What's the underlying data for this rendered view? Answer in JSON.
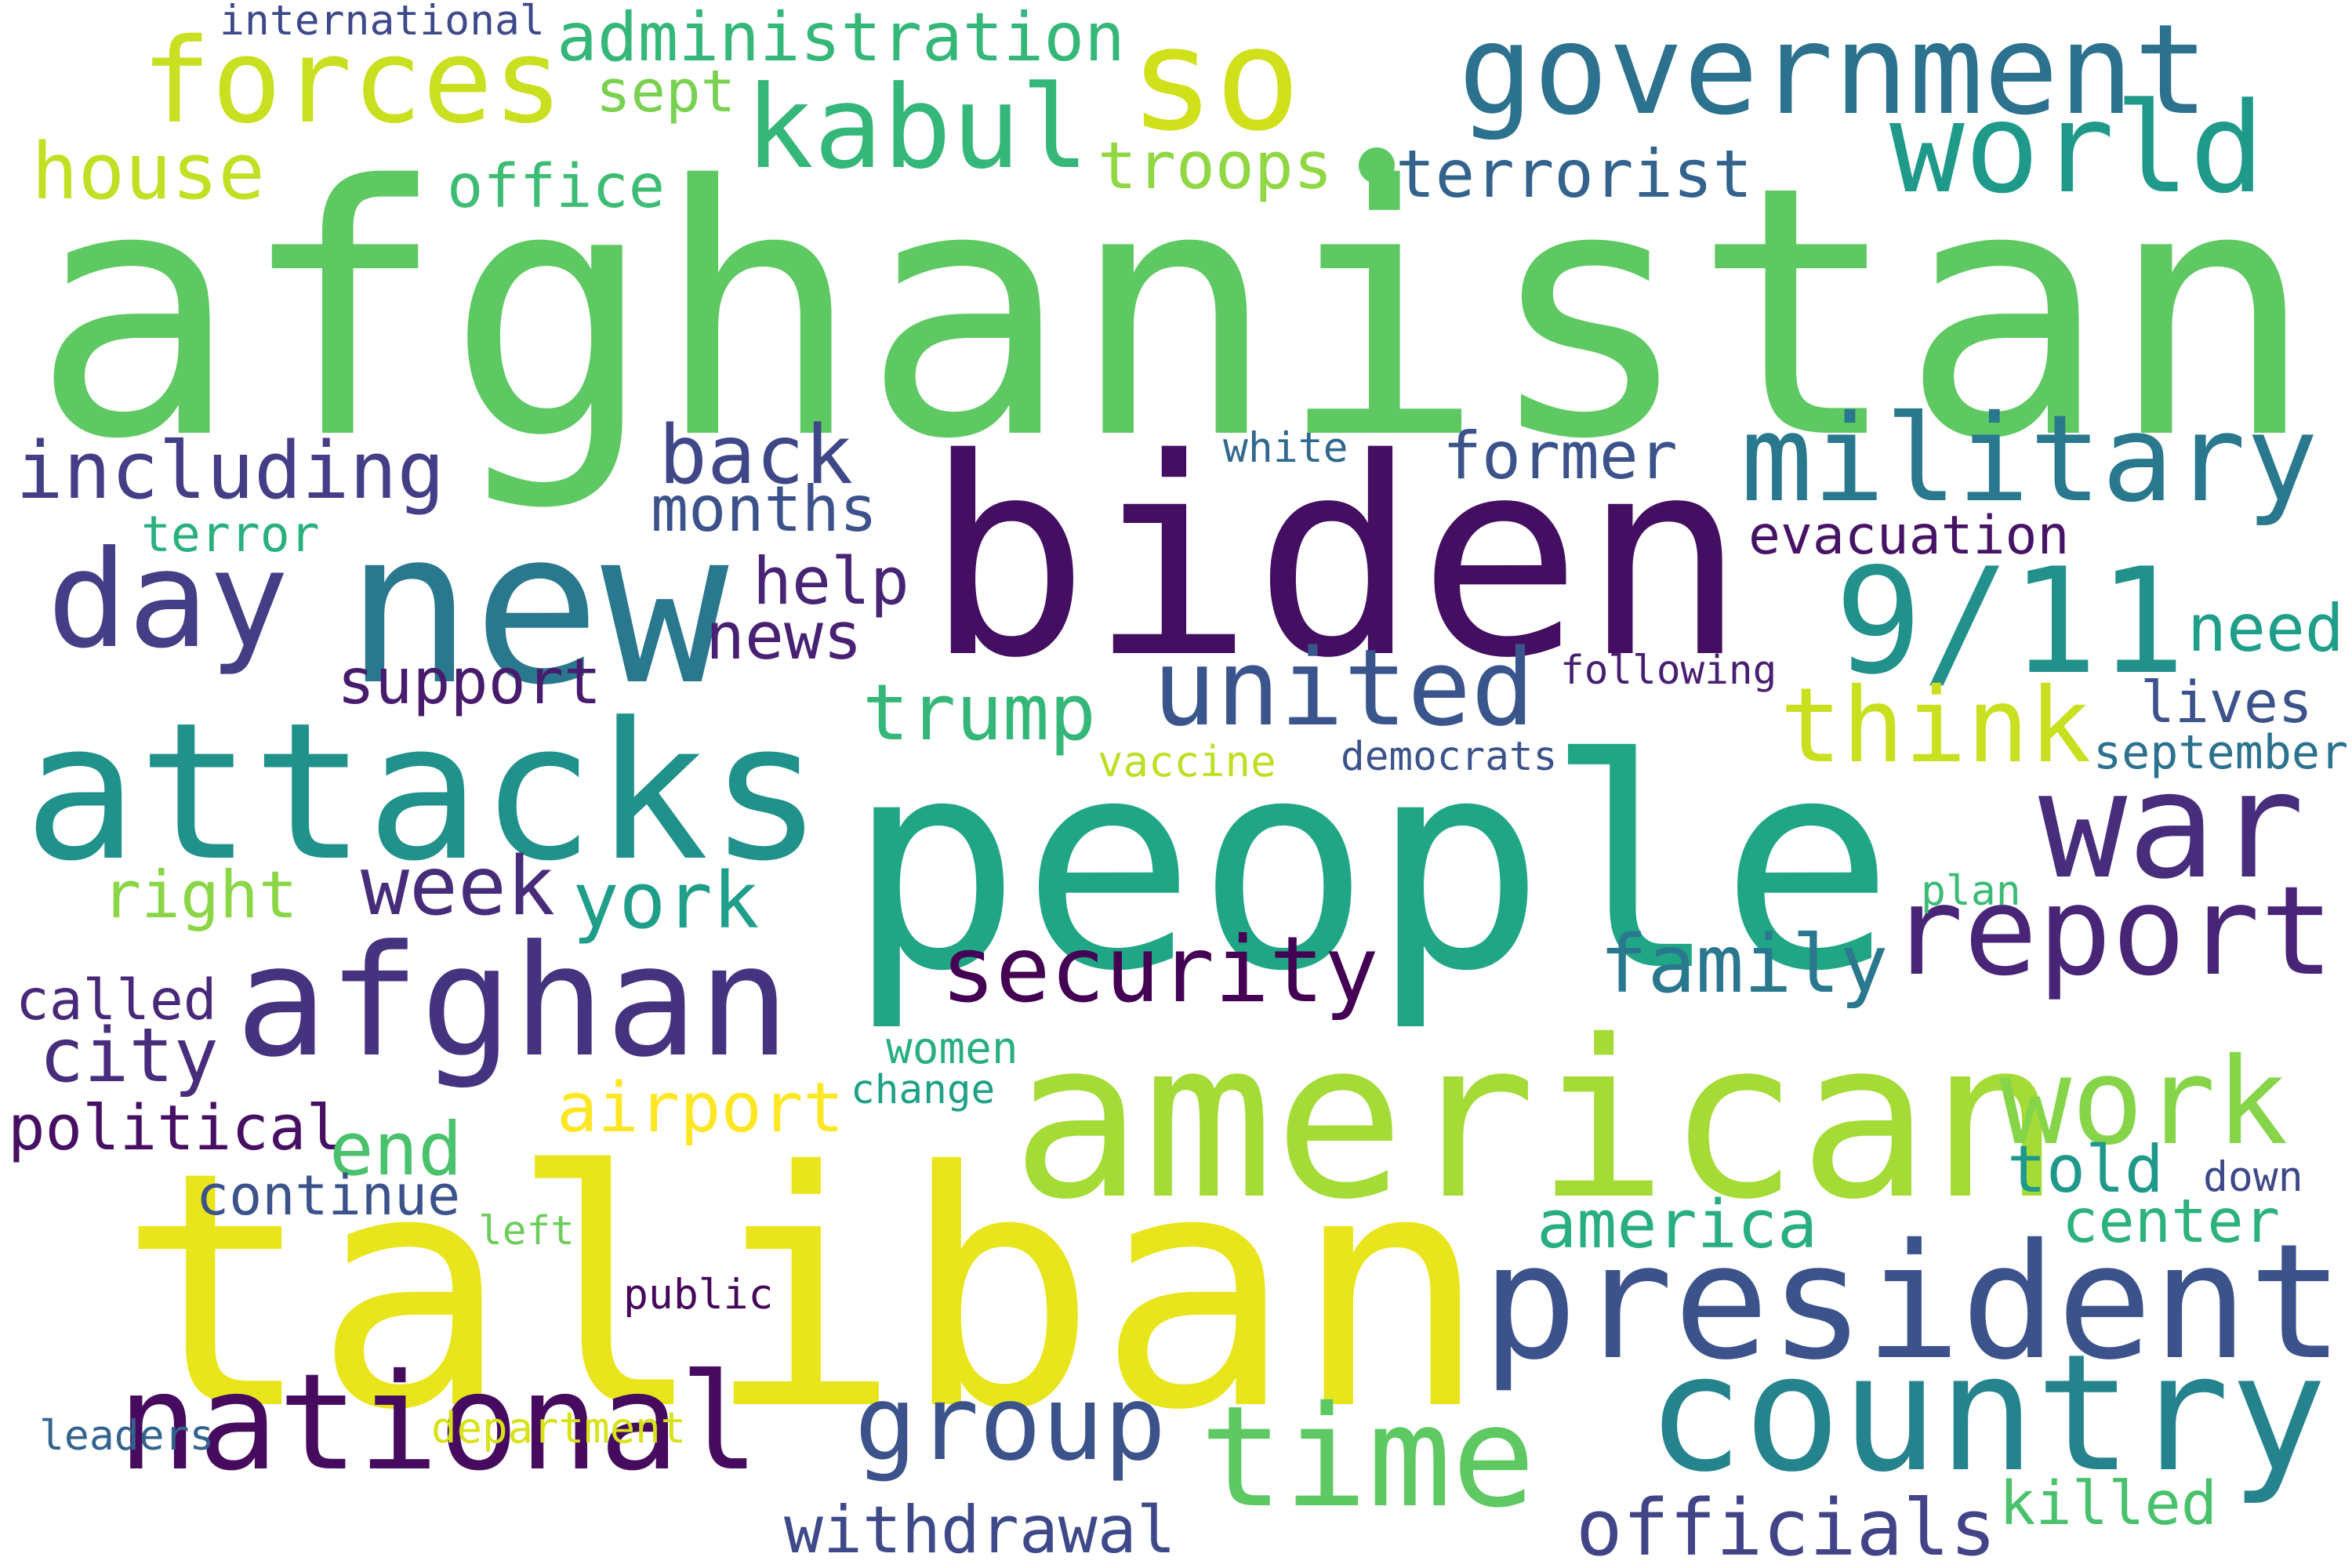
{
  "words": [
    {
      "id": "afghanistan",
      "text": "afghanistan",
      "color": "#5ec962"
    },
    {
      "id": "taliban",
      "text": "taliban",
      "color": "#e9e51c"
    },
    {
      "id": "biden",
      "text": "biden",
      "color": "#440f62"
    },
    {
      "id": "people",
      "text": "people",
      "color": "#21a685"
    },
    {
      "id": "american",
      "text": "american",
      "color": "#a4db36"
    },
    {
      "id": "attacks",
      "text": "attacks",
      "color": "#21918c"
    },
    {
      "id": "new",
      "text": "new",
      "color": "#2a788e"
    },
    {
      "id": "president",
      "text": "president",
      "color": "#3b528b"
    },
    {
      "id": "government",
      "text": "government",
      "color": "#2c718e"
    },
    {
      "id": "afghan",
      "text": "afghan",
      "color": "#46337f"
    },
    {
      "id": "national",
      "text": "national",
      "color": "#460b5e"
    },
    {
      "id": "country",
      "text": "country",
      "color": "#25838e"
    },
    {
      "id": "time",
      "text": "time",
      "color": "#5ec962"
    },
    {
      "id": "911",
      "text": "9/11",
      "color": "#22918c"
    },
    {
      "id": "military",
      "text": "military",
      "color": "#2a788e"
    },
    {
      "id": "war",
      "text": "war",
      "color": "#472d7b"
    },
    {
      "id": "report",
      "text": "report",
      "color": "#482576"
    },
    {
      "id": "united",
      "text": "united",
      "color": "#3a548c"
    },
    {
      "id": "day",
      "text": "day",
      "color": "#433e85"
    },
    {
      "id": "group",
      "text": "group",
      "color": "#3b528b"
    },
    {
      "id": "world",
      "text": "world",
      "color": "#1f9a8a"
    },
    {
      "id": "kabul",
      "text": "kabul",
      "color": "#35b779"
    },
    {
      "id": "forces",
      "text": "forces",
      "color": "#c8e020"
    },
    {
      "id": "so",
      "text": "so",
      "color": "#d0e11c"
    },
    {
      "id": "think",
      "text": "think",
      "color": "#c8e020"
    },
    {
      "id": "work",
      "text": "work",
      "color": "#86d549"
    },
    {
      "id": "security",
      "text": "security",
      "color": "#440154"
    },
    {
      "id": "officials",
      "text": "officials",
      "color": "#414487"
    },
    {
      "id": "including",
      "text": "including",
      "color": "#433e85"
    },
    {
      "id": "trump",
      "text": "trump",
      "color": "#35b779"
    },
    {
      "id": "family",
      "text": "family",
      "color": "#2a788e"
    },
    {
      "id": "back",
      "text": "back",
      "color": "#3f4788"
    },
    {
      "id": "week",
      "text": "week",
      "color": "#472c7a"
    },
    {
      "id": "york",
      "text": "york",
      "color": "#1f9e89"
    },
    {
      "id": "right",
      "text": "right",
      "color": "#8bd646"
    },
    {
      "id": "city",
      "text": "city",
      "color": "#472d7b"
    },
    {
      "id": "withdrawal",
      "text": "withdrawal",
      "color": "#3e4989"
    },
    {
      "id": "killed",
      "text": "killed",
      "color": "#4ac16d"
    },
    {
      "id": "former",
      "text": "former",
      "color": "#3b528b"
    },
    {
      "id": "terrorist",
      "text": "terrorist",
      "color": "#33638d"
    },
    {
      "id": "troops",
      "text": "troops",
      "color": "#90d743"
    },
    {
      "id": "administration",
      "text": "administration",
      "color": "#35b779"
    },
    {
      "id": "house",
      "text": "house",
      "color": "#c2df23"
    },
    {
      "id": "help",
      "text": "help",
      "color": "#482475"
    },
    {
      "id": "america",
      "text": "america",
      "color": "#29af7f"
    },
    {
      "id": "airport",
      "text": "airport",
      "color": "#fde725"
    },
    {
      "id": "political",
      "text": "political",
      "color": "#471063"
    },
    {
      "id": "months",
      "text": "months",
      "color": "#3b528b"
    },
    {
      "id": "news",
      "text": "news",
      "color": "#482173"
    },
    {
      "id": "support",
      "text": "support",
      "color": "#481b6d"
    },
    {
      "id": "end",
      "text": "end",
      "color": "#4ac16d"
    },
    {
      "id": "told",
      "text": "told",
      "color": "#1f988b"
    },
    {
      "id": "center",
      "text": "center",
      "color": "#2db27d"
    },
    {
      "id": "continue",
      "text": "continue",
      "color": "#3b528b"
    },
    {
      "id": "need",
      "text": "need",
      "color": "#1f9e89"
    },
    {
      "id": "lives",
      "text": "lives",
      "color": "#3b528b"
    },
    {
      "id": "office",
      "text": "office",
      "color": "#3dbc74"
    },
    {
      "id": "called",
      "text": "called",
      "color": "#482979"
    },
    {
      "id": "evacuation",
      "text": "evacuation",
      "color": "#471365"
    },
    {
      "id": "sept",
      "text": "sept",
      "color": "#7ad151"
    },
    {
      "id": "terror",
      "text": "terror",
      "color": "#2ab07f"
    },
    {
      "id": "september",
      "text": "september",
      "color": "#2c718e"
    },
    {
      "id": "international",
      "text": "international",
      "color": "#3e4989"
    },
    {
      "id": "following",
      "text": "following",
      "color": "#481f70"
    },
    {
      "id": "vaccine",
      "text": "vaccine",
      "color": "#bddf26"
    },
    {
      "id": "democrats",
      "text": "democrats",
      "color": "#3b528b"
    },
    {
      "id": "white",
      "text": "white",
      "color": "#31688e"
    },
    {
      "id": "department",
      "text": "department",
      "color": "#d8e219"
    },
    {
      "id": "leaders",
      "text": "leaders",
      "color": "#33638d"
    },
    {
      "id": "women",
      "text": "women",
      "color": "#29af7f"
    },
    {
      "id": "change",
      "text": "change",
      "color": "#1fa187"
    },
    {
      "id": "public",
      "text": "public",
      "color": "#450559"
    },
    {
      "id": "left",
      "text": "left",
      "color": "#6ccd5a"
    },
    {
      "id": "down",
      "text": "down",
      "color": "#3e4989"
    },
    {
      "id": "plan",
      "text": "plan",
      "color": "#3bbb75"
    }
  ],
  "marks": [
    {
      "id": "dot",
      "color": "#5ec962"
    }
  ]
}
